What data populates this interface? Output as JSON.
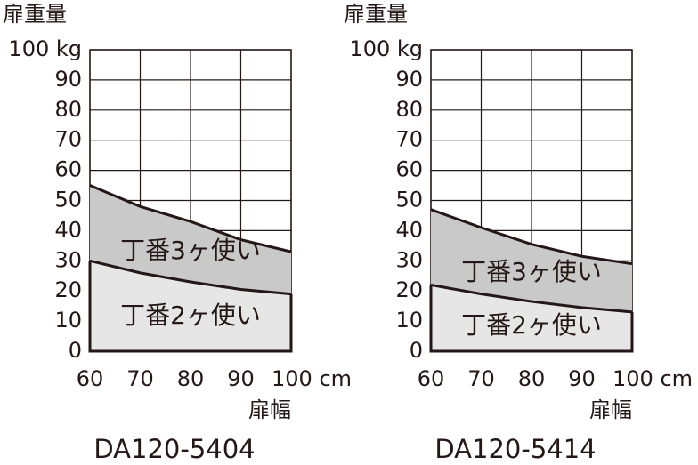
{
  "chart_data": [
    {
      "type": "area",
      "title": "DA120-5404",
      "y_label": "扉重量",
      "x_label": "扉幅",
      "x": [
        60,
        70,
        80,
        90,
        100
      ],
      "series": [
        {
          "name": "丁番3ヶ使い",
          "color": "#c9c9c9",
          "values": [
            55,
            48,
            43,
            37,
            33
          ]
        },
        {
          "name": "丁番2ヶ使い",
          "color": "#e6e6e6",
          "values": [
            30,
            26,
            23,
            20.5,
            19
          ]
        }
      ],
      "xlim": [
        60,
        100
      ],
      "xticks": [
        60,
        70,
        80,
        90,
        {
          "value": 100,
          "label": "100 cm"
        }
      ],
      "ylim": [
        0,
        100
      ],
      "yticks": [
        0,
        10,
        20,
        30,
        40,
        50,
        60,
        70,
        80,
        90,
        {
          "value": 100,
          "label": "100 kg"
        }
      ],
      "grid": true
    },
    {
      "type": "area",
      "title": "DA120-5414",
      "y_label": "扉重量",
      "x_label": "扉幅",
      "x": [
        60,
        70,
        80,
        90,
        100
      ],
      "series": [
        {
          "name": "丁番3ヶ使い",
          "color": "#c9c9c9",
          "values": [
            47,
            41,
            35.5,
            31.5,
            29
          ]
        },
        {
          "name": "丁番2ヶ使い",
          "color": "#e6e6e6",
          "values": [
            22,
            19,
            16.5,
            14.5,
            13
          ]
        }
      ],
      "xlim": [
        60,
        100
      ],
      "xticks": [
        60,
        70,
        80,
        90,
        {
          "value": 100,
          "label": "100 cm"
        }
      ],
      "ylim": [
        0,
        100
      ],
      "yticks": [
        0,
        10,
        20,
        30,
        40,
        50,
        60,
        70,
        80,
        90,
        {
          "value": 100,
          "label": "100 kg"
        }
      ],
      "grid": true
    }
  ]
}
